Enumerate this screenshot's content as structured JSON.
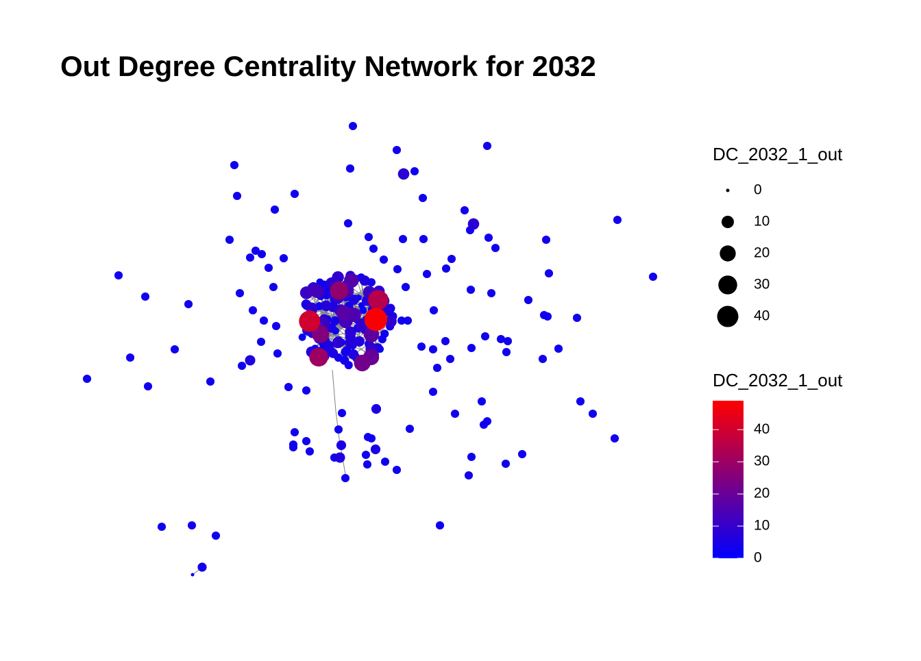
{
  "chart_data": {
    "type": "network",
    "title": "Out Degree Centrality Network for 2032",
    "node_values": [
      3,
      3,
      3,
      3,
      3,
      8,
      3,
      3,
      3,
      3,
      3,
      3,
      8,
      3,
      3,
      3,
      3,
      3,
      3,
      3,
      3,
      3,
      3,
      3,
      3,
      3,
      3,
      3,
      3,
      3,
      3,
      3,
      3,
      3,
      3,
      3,
      3,
      3,
      3,
      3,
      3,
      3,
      3,
      3,
      3,
      3,
      3,
      3,
      3,
      3,
      3,
      3,
      3,
      3,
      3,
      3,
      3,
      3,
      3,
      3,
      3,
      3,
      3,
      3,
      3,
      3,
      6,
      3,
      3,
      3,
      3,
      3,
      3,
      3,
      3,
      3,
      3,
      3,
      5,
      3,
      3,
      3,
      3,
      3,
      3,
      3,
      3,
      3,
      3,
      3,
      3,
      3,
      3,
      3,
      3,
      5,
      5,
      3,
      3,
      3,
      3,
      3,
      6,
      3,
      3,
      3,
      3,
      3,
      3,
      3,
      3,
      3,
      3,
      4,
      0,
      2,
      5,
      3,
      8,
      1,
      4,
      6,
      2,
      9,
      3,
      12,
      4,
      2,
      7,
      3,
      5,
      1,
      6,
      10,
      3,
      4,
      2,
      8,
      3,
      15,
      5,
      2,
      4,
      6,
      3,
      1,
      7,
      3,
      11,
      4,
      2,
      5,
      9,
      3,
      6,
      2,
      4,
      18,
      3,
      5,
      2,
      7,
      4,
      3,
      8,
      6,
      2,
      13,
      4,
      3,
      5,
      1,
      7,
      2,
      9,
      4,
      3,
      22,
      5,
      2,
      6,
      3,
      8,
      4,
      2,
      10,
      3,
      5,
      2,
      14,
      4,
      6,
      3,
      7,
      2,
      5,
      28,
      3,
      4,
      9,
      2,
      6,
      3,
      5,
      12,
      2,
      4,
      7,
      3,
      17,
      5,
      2,
      8,
      4,
      3,
      6,
      35,
      2,
      5,
      3,
      9,
      4,
      2,
      11,
      6,
      3,
      4,
      48,
      2,
      5,
      7,
      3,
      20,
      4,
      2,
      8,
      3,
      6,
      2,
      25,
      4,
      5,
      3,
      16,
      2,
      7,
      4,
      3,
      40,
      5,
      2,
      9,
      3,
      6,
      4,
      2,
      30,
      5,
      3,
      7,
      4,
      2,
      13,
      3,
      6
    ],
    "size_legend": {
      "title": "DC_2032_1_out",
      "breaks": [
        0,
        10,
        20,
        30,
        40
      ]
    },
    "color_legend": {
      "title": "DC_2032_1_out",
      "lim": [
        0,
        49
      ],
      "ticks": [
        0,
        10,
        20,
        30,
        40
      ],
      "low": "#0000ff",
      "high": "#ff0000"
    },
    "edge_color": "#808080"
  }
}
